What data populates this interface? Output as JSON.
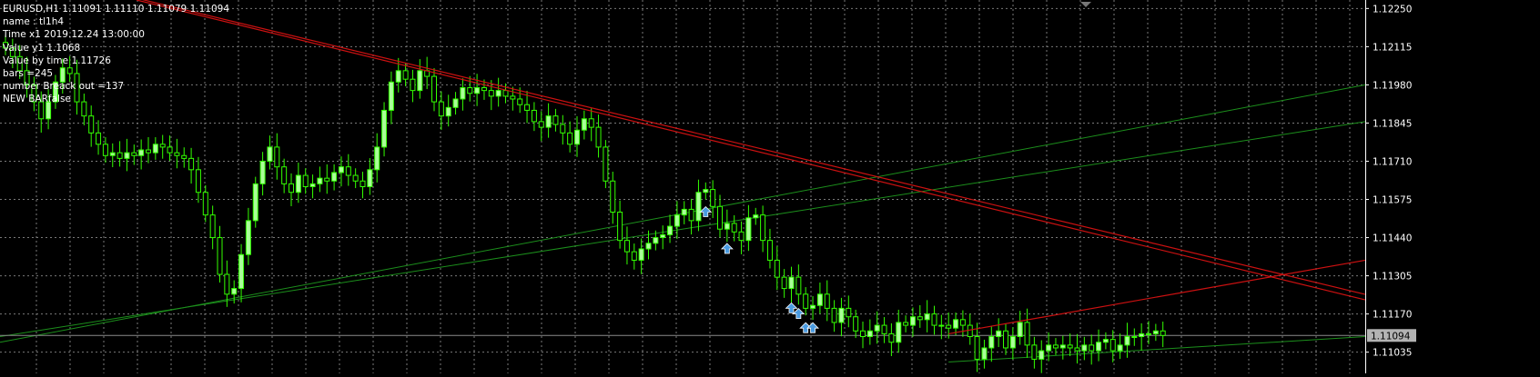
{
  "info": {
    "symbol_line": "EURUSD,H1  1.11091 1.11110 1.11079 1.11094",
    "name_line": "name : tl1h4",
    "time_line": "Time  x1  2019.12.24 13:00:00",
    "value_y1_line": "Value y1  1.1068",
    "value_by_time_line": "Value by time  1.11726",
    "bars_line": "bars =245",
    "breakout_line": "number Breack out  =137",
    "new_bar_line": "NEW BARfalse"
  },
  "colors": {
    "background": "#000000",
    "grid": "#7a7a7a",
    "candle_bull": "#aaff99",
    "candle_bear": "#000000",
    "candle_border": "#33ff00",
    "red_line": "#cc1111",
    "green_line": "#1c8f1c",
    "arrow": "#4a9be0",
    "axis_text": "#ffffff",
    "price_tag_bg": "#b3b3b3"
  },
  "chart_data": {
    "type": "candlestick",
    "symbol": "EURUSD",
    "timeframe": "H1",
    "y_ticks": [
      "1.12250",
      "1.12115",
      "1.11980",
      "1.11845",
      "1.11710",
      "1.11575",
      "1.11440",
      "1.11305",
      "1.11170",
      "1.11035"
    ],
    "ylim": [
      1.1096,
      1.1228
    ],
    "grid": true,
    "current_price": 1.11094,
    "current_price_label": "1.11094",
    "close": [
      1.1211,
      1.1208,
      1.1203,
      1.1198,
      1.1192,
      1.1186,
      1.1192,
      1.1199,
      1.1204,
      1.1202,
      1.1192,
      1.1187,
      1.1181,
      1.1177,
      1.1173,
      1.1174,
      1.1172,
      1.1174,
      1.1173,
      1.1175,
      1.1174,
      1.1177,
      1.1176,
      1.1174,
      1.1173,
      1.1172,
      1.1168,
      1.116,
      1.1152,
      1.1144,
      1.1131,
      1.1124,
      1.1126,
      1.1138,
      1.115,
      1.1163,
      1.1171,
      1.1176,
      1.1169,
      1.1163,
      1.116,
      1.1166,
      1.1162,
      1.1163,
      1.1165,
      1.1164,
      1.1167,
      1.1169,
      1.1166,
      1.1164,
      1.1162,
      1.1168,
      1.1176,
      1.1189,
      1.1199,
      1.1203,
      1.12,
      1.1196,
      1.1203,
      1.1201,
      1.1192,
      1.1187,
      1.119,
      1.1193,
      1.1197,
      1.1195,
      1.1197,
      1.1196,
      1.1194,
      1.1196,
      1.1194,
      1.1193,
      1.1191,
      1.1189,
      1.1185,
      1.1183,
      1.1187,
      1.1184,
      1.1181,
      1.1177,
      1.1182,
      1.1186,
      1.1183,
      1.1176,
      1.1164,
      1.1153,
      1.1143,
      1.1139,
      1.1136,
      1.114,
      1.1142,
      1.1144,
      1.1145,
      1.1148,
      1.1152,
      1.1154,
      1.115,
      1.116,
      1.1161,
      1.1155,
      1.1147,
      1.1149,
      1.1146,
      1.1143,
      1.1151,
      1.1152,
      1.1143,
      1.1136,
      1.113,
      1.1126,
      1.113,
      1.1124,
      1.1119,
      1.112,
      1.1124,
      1.1119,
      1.1114,
      1.1119,
      1.1116,
      1.1111,
      1.1109,
      1.1111,
      1.1113,
      1.111,
      1.1107,
      1.1114,
      1.1113,
      1.1116,
      1.1115,
      1.1117,
      1.1113,
      1.1113,
      1.1112,
      1.1115,
      1.1113,
      1.1109,
      1.1101,
      1.1105,
      1.1109,
      1.1111,
      1.1105,
      1.1109,
      1.1114,
      1.1106,
      1.1101,
      1.1104,
      1.1106,
      1.1105,
      1.1106,
      1.1105,
      1.1104,
      1.1106,
      1.1104,
      1.1107,
      1.1108,
      1.1104,
      1.1106,
      1.1109,
      1.1109,
      1.111,
      1.111,
      1.1111,
      1.11094
    ],
    "red_trendline_start": {
      "value": 1.1228,
      "bar_label": "2019.12.24 13:00:00"
    },
    "red_line_end_value": 1.1122,
    "red_rising_line": {
      "start": 1.111,
      "end": 1.1136
    },
    "green_lines": [
      {
        "start": 1.1107,
        "end": 1.1198
      },
      {
        "start": 1.1109,
        "end": 1.1185
      },
      {
        "start": 1.11,
        "end": 1.1109
      }
    ],
    "breakout_arrow_bars": [
      98,
      101,
      110,
      111,
      112,
      113
    ]
  }
}
